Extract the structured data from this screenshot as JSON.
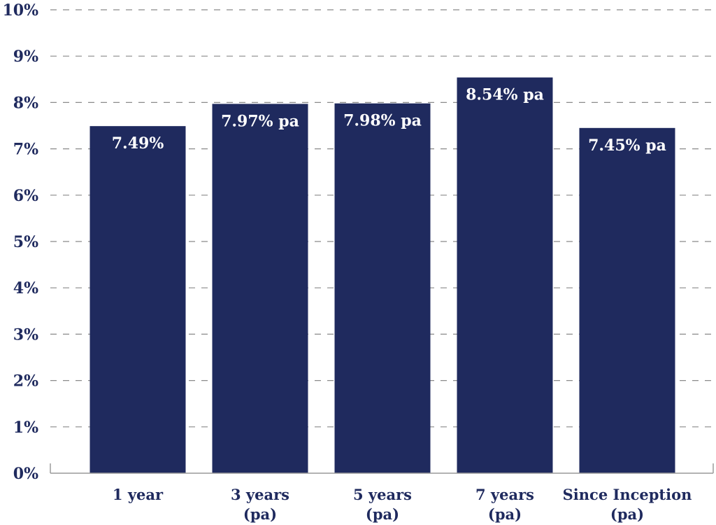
{
  "colors": {
    "bar": "#1f2a5e",
    "label_text": "#ffffff",
    "axis_text": "#1f2a5e"
  },
  "chart_data": {
    "type": "bar",
    "title": "",
    "xlabel": "",
    "ylabel": "",
    "categories": [
      [
        "1 year"
      ],
      [
        "3 years",
        "(pa)"
      ],
      [
        "5 years",
        "(pa)"
      ],
      [
        "7 years",
        "(pa)"
      ],
      [
        "Since Inception",
        "(pa)"
      ]
    ],
    "values": [
      7.49,
      7.97,
      7.98,
      8.54,
      7.45
    ],
    "data_labels": [
      "7.49%",
      "7.97% pa",
      "7.98% pa",
      "8.54% pa",
      "7.45% pa"
    ],
    "ylim": [
      0,
      10
    ],
    "yticks": [
      "0%",
      "1%",
      "2%",
      "3%",
      "4%",
      "5%",
      "6%",
      "7%",
      "8%",
      "9%",
      "10%"
    ],
    "grid": true,
    "legend": "none"
  }
}
